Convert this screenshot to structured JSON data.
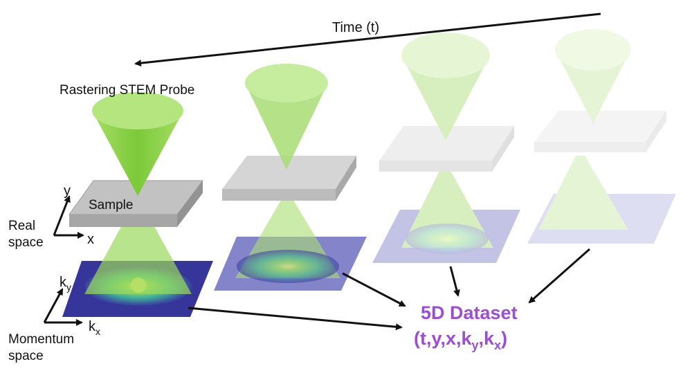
{
  "labels": {
    "time": "Time (t)",
    "probe": "Rastering STEM Probe",
    "sample": "Sample",
    "real_line1": "Real",
    "real_line2": "space",
    "mom_line1": "Momentum",
    "mom_line2": "space",
    "axis_x": "x",
    "axis_y": "y",
    "axis_k": "k",
    "sub_x": "x",
    "sub_y": "y"
  },
  "dataset": {
    "title": "5D Dataset",
    "formula_open": "(t,y,x,k",
    "formula_sub_y": "y",
    "formula_mid": ",k",
    "formula_sub_x": "x",
    "formula_close": ")"
  },
  "colors": {
    "cone": "#8fd24a",
    "cone_light": "#c9ec9f",
    "sample": "#c7c7c7",
    "detector": "#3f3fa0",
    "dataset_text": "#9b4fd0",
    "arrow": "#111111"
  }
}
